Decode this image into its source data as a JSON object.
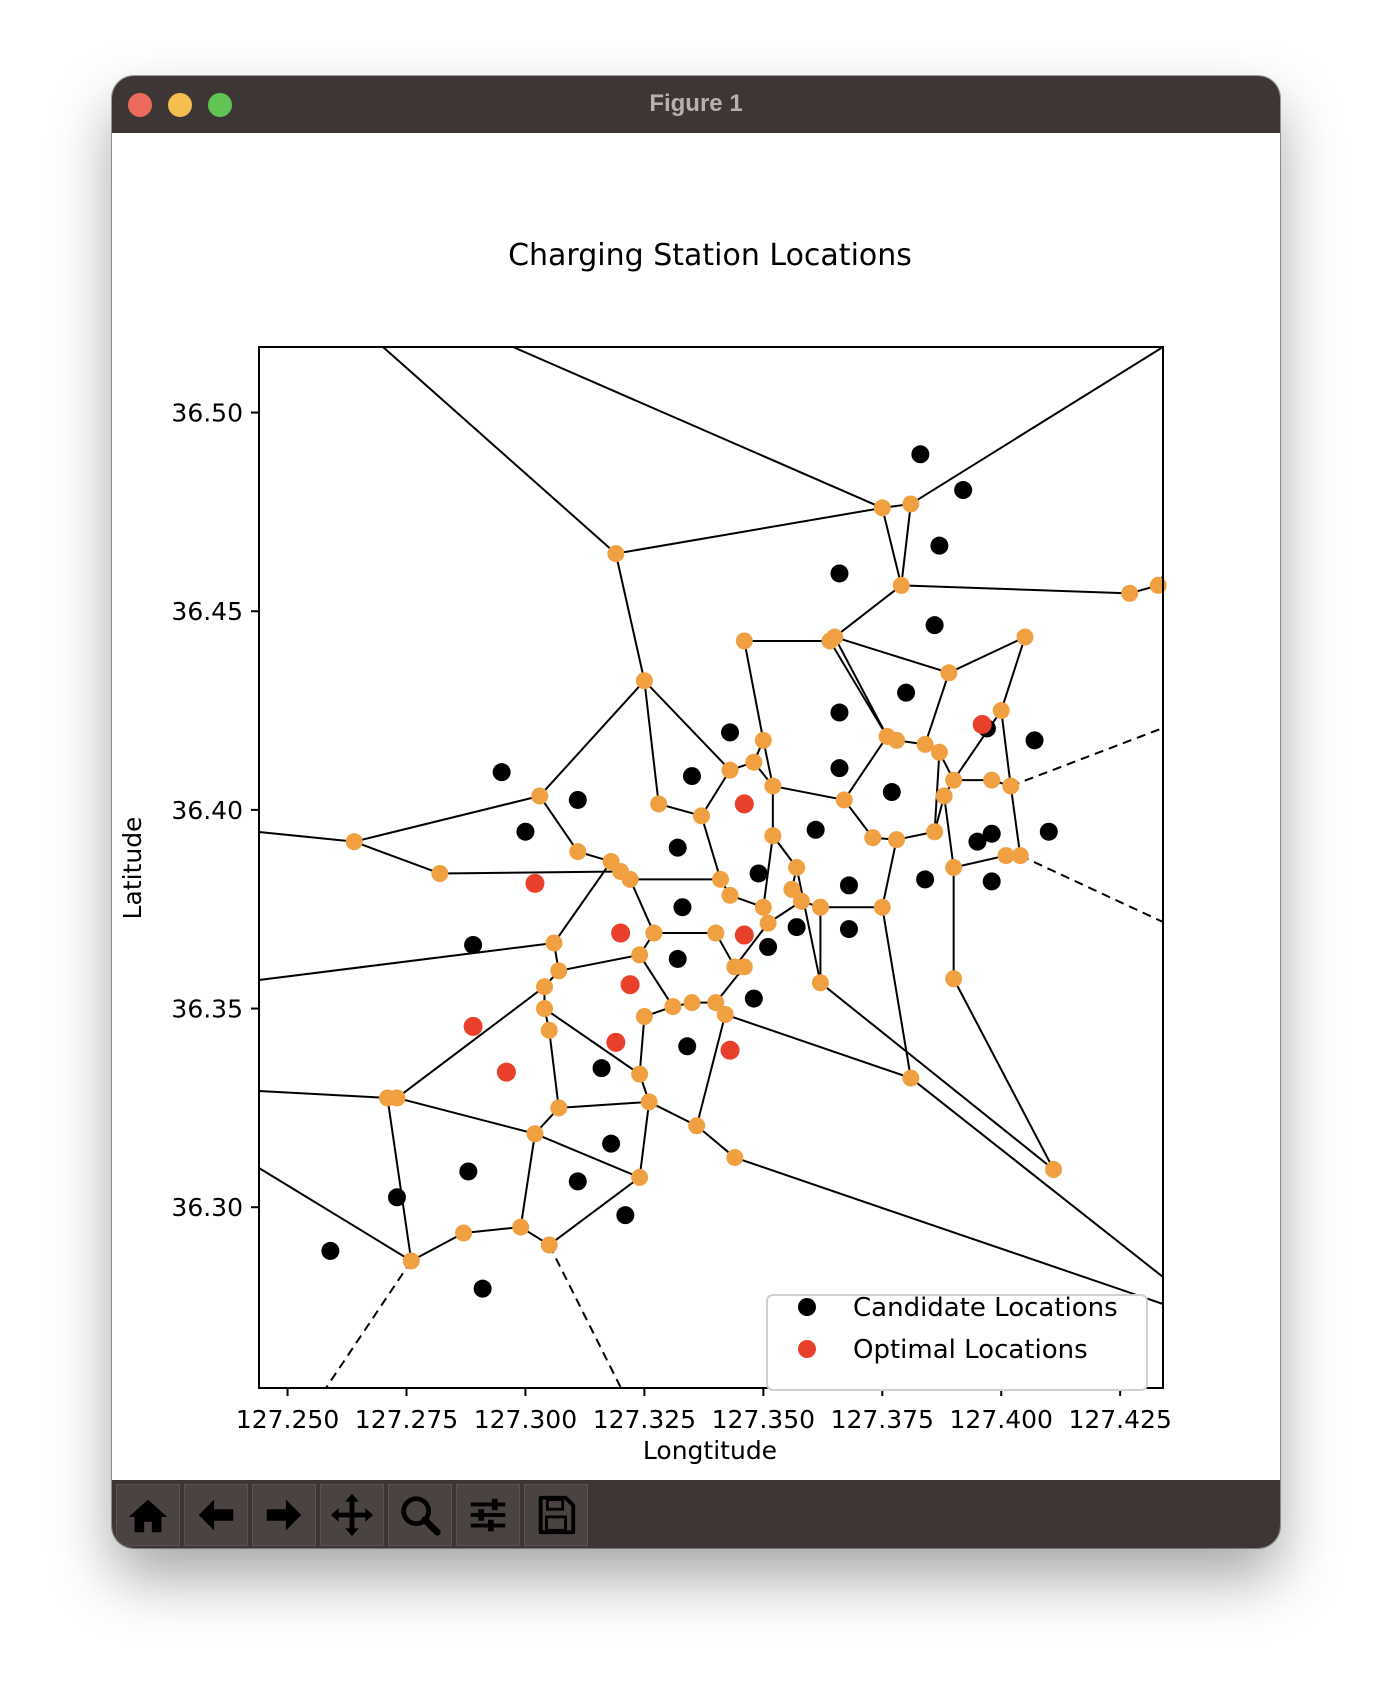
{
  "window": {
    "title": "Figure 1"
  },
  "toolbar": {
    "buttons": [
      {
        "name": "home-button",
        "icon": "home-icon"
      },
      {
        "name": "back-button",
        "icon": "arrow-left-icon"
      },
      {
        "name": "forward-button",
        "icon": "arrow-right-icon"
      },
      {
        "name": "pan-button",
        "icon": "move-icon"
      },
      {
        "name": "zoom-button",
        "icon": "zoom-icon"
      },
      {
        "name": "configure-subplots-button",
        "icon": "sliders-icon"
      },
      {
        "name": "save-button",
        "icon": "save-icon"
      }
    ]
  },
  "chart_data": {
    "type": "scatter",
    "title": "Charging Station Locations",
    "xlabel": "Longtitude",
    "ylabel": "Latitude",
    "xlim": [
      127.244,
      127.434
    ],
    "ylim": [
      36.2545,
      36.5165
    ],
    "xticks": [
      127.25,
      127.275,
      127.3,
      127.325,
      127.35,
      127.375,
      127.4,
      127.425
    ],
    "xtick_labels": [
      "127.250",
      "127.275",
      "127.300",
      "127.325",
      "127.350",
      "127.375",
      "127.400",
      "127.425"
    ],
    "yticks": [
      36.3,
      36.35,
      36.4,
      36.45,
      36.5
    ],
    "ytick_labels": [
      "36.30",
      "36.35",
      "36.40",
      "36.45",
      "36.50"
    ],
    "colors": {
      "candidate": "#000000",
      "optimal": "#e8402a",
      "vertex": "#f0a040",
      "edge": "#000000"
    },
    "legend": {
      "position": "lower-right",
      "entries": [
        "Candidate Locations",
        "Optimal Locations"
      ]
    },
    "series": [
      {
        "name": "Candidate Locations",
        "points": [
          [
            127.383,
            36.4895
          ],
          [
            127.392,
            36.4805
          ],
          [
            127.387,
            36.4665
          ],
          [
            127.366,
            36.4595
          ],
          [
            127.386,
            36.4465
          ],
          [
            127.38,
            36.4295
          ],
          [
            127.366,
            36.4245
          ],
          [
            127.397,
            36.4205
          ],
          [
            127.407,
            36.4175
          ],
          [
            127.343,
            36.4195
          ],
          [
            127.335,
            36.4085
          ],
          [
            127.295,
            36.4095
          ],
          [
            127.366,
            36.4105
          ],
          [
            127.377,
            36.4045
          ],
          [
            127.311,
            36.4025
          ],
          [
            127.3,
            36.3945
          ],
          [
            127.361,
            36.395
          ],
          [
            127.332,
            36.3905
          ],
          [
            127.349,
            36.384
          ],
          [
            127.368,
            36.381
          ],
          [
            127.384,
            36.3825
          ],
          [
            127.395,
            36.392
          ],
          [
            127.398,
            36.394
          ],
          [
            127.398,
            36.382
          ],
          [
            127.41,
            36.3945
          ],
          [
            127.333,
            36.3755
          ],
          [
            127.357,
            36.3705
          ],
          [
            127.368,
            36.37
          ],
          [
            127.289,
            36.366
          ],
          [
            127.351,
            36.3655
          ],
          [
            127.332,
            36.3625
          ],
          [
            127.348,
            36.3525
          ],
          [
            127.334,
            36.3405
          ],
          [
            127.316,
            36.335
          ],
          [
            127.318,
            36.316
          ],
          [
            127.288,
            36.309
          ],
          [
            127.311,
            36.3065
          ],
          [
            127.321,
            36.298
          ],
          [
            127.273,
            36.3025
          ],
          [
            127.259,
            36.289
          ],
          [
            127.291,
            36.2795
          ]
        ]
      },
      {
        "name": "Optimal Locations",
        "points": [
          [
            127.396,
            36.4215
          ],
          [
            127.346,
            36.4015
          ],
          [
            127.302,
            36.3815
          ],
          [
            127.32,
            36.369
          ],
          [
            127.346,
            36.3685
          ],
          [
            127.322,
            36.356
          ],
          [
            127.289,
            36.3455
          ],
          [
            127.319,
            36.3415
          ],
          [
            127.343,
            36.3395
          ],
          [
            127.296,
            36.334
          ]
        ]
      }
    ],
    "voronoi_vertices": [
      [
        127.381,
        36.477
      ],
      [
        127.375,
        36.476
      ],
      [
        127.379,
        36.4565
      ],
      [
        127.427,
        36.4545
      ],
      [
        127.433,
        36.4565
      ],
      [
        127.319,
        36.4645
      ],
      [
        127.346,
        36.4425
      ],
      [
        127.364,
        36.4425
      ],
      [
        127.365,
        36.4435
      ],
      [
        127.405,
        36.4435
      ],
      [
        127.389,
        36.4345
      ],
      [
        127.325,
        36.4325
      ],
      [
        127.4,
        36.425
      ],
      [
        127.35,
        36.4175
      ],
      [
        127.376,
        36.4185
      ],
      [
        127.378,
        36.4175
      ],
      [
        127.384,
        36.4165
      ],
      [
        127.387,
        36.4145
      ],
      [
        127.343,
        36.41
      ],
      [
        127.348,
        36.412
      ],
      [
        127.352,
        36.406
      ],
      [
        127.367,
        36.4025
      ],
      [
        127.39,
        36.4075
      ],
      [
        127.398,
        36.4075
      ],
      [
        127.402,
        36.406
      ],
      [
        127.303,
        36.4035
      ],
      [
        127.328,
        36.4015
      ],
      [
        127.388,
        36.4035
      ],
      [
        127.337,
        36.3985
      ],
      [
        127.352,
        36.3935
      ],
      [
        127.373,
        36.393
      ],
      [
        127.378,
        36.3925
      ],
      [
        127.386,
        36.3945
      ],
      [
        127.264,
        36.392
      ],
      [
        127.311,
        36.3895
      ],
      [
        127.282,
        36.384
      ],
      [
        127.318,
        36.387
      ],
      [
        127.32,
        36.3845
      ],
      [
        127.322,
        36.3825
      ],
      [
        127.341,
        36.3825
      ],
      [
        127.357,
        36.3855
      ],
      [
        127.39,
        36.3855
      ],
      [
        127.401,
        36.3885
      ],
      [
        127.404,
        36.3885
      ],
      [
        127.343,
        36.3785
      ],
      [
        127.356,
        36.38
      ],
      [
        127.358,
        36.377
      ],
      [
        127.362,
        36.3755
      ],
      [
        127.35,
        36.3755
      ],
      [
        127.351,
        36.3715
      ],
      [
        127.375,
        36.3755
      ],
      [
        127.327,
        36.369
      ],
      [
        127.34,
        36.369
      ],
      [
        127.306,
        36.3665
      ],
      [
        127.324,
        36.3635
      ],
      [
        127.344,
        36.3605
      ],
      [
        127.346,
        36.3605
      ],
      [
        127.307,
        36.3595
      ],
      [
        127.362,
        36.3565
      ],
      [
        127.39,
        36.3575
      ],
      [
        127.304,
        36.3555
      ],
      [
        127.335,
        36.3515
      ],
      [
        127.34,
        36.3515
      ],
      [
        127.331,
        36.3505
      ],
      [
        127.304,
        36.35
      ],
      [
        127.342,
        36.3485
      ],
      [
        127.325,
        36.348
      ],
      [
        127.305,
        36.3445
      ],
      [
        127.381,
        36.3325
      ],
      [
        127.324,
        36.3335
      ],
      [
        127.273,
        36.3275
      ],
      [
        127.271,
        36.3275
      ],
      [
        127.326,
        36.3265
      ],
      [
        127.307,
        36.325
      ],
      [
        127.336,
        36.3205
      ],
      [
        127.302,
        36.3185
      ],
      [
        127.344,
        36.3125
      ],
      [
        127.411,
        36.3095
      ],
      [
        127.324,
        36.3075
      ],
      [
        127.287,
        36.2935
      ],
      [
        127.299,
        36.295
      ],
      [
        127.305,
        36.2905
      ],
      [
        127.276,
        36.2865
      ]
    ]
  }
}
